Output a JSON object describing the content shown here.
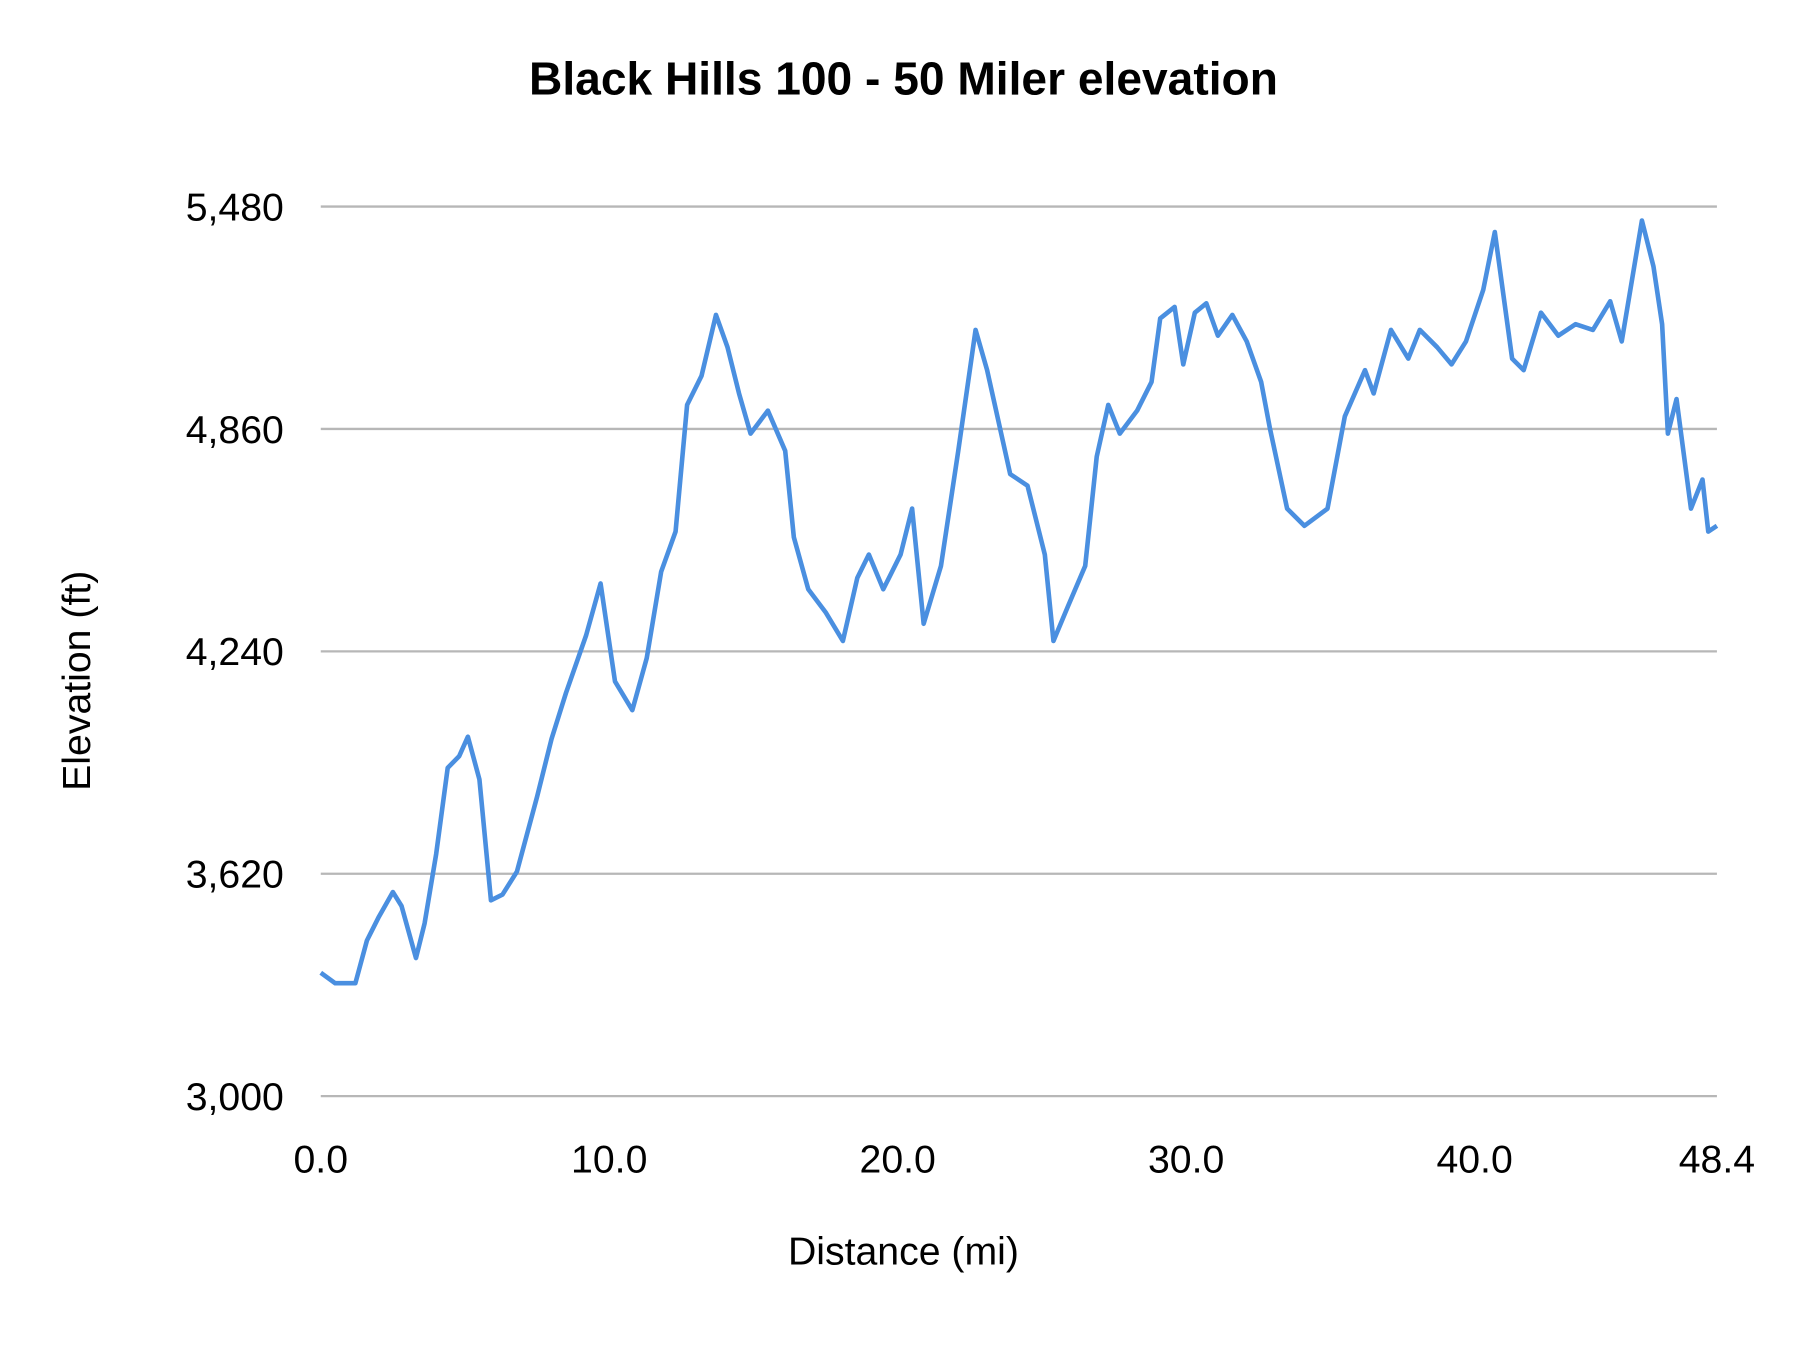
{
  "chart_data": {
    "type": "line",
    "title": "Black Hills 100 - 50 Miler elevation",
    "xlabel": "Distance (mi)",
    "ylabel": "Elevation (ft)",
    "xlim": [
      0,
      48.4
    ],
    "ylim": [
      3000,
      5480
    ],
    "x_ticks": [
      "0.0",
      "10.0",
      "20.0",
      "30.0",
      "40.0",
      "48.4"
    ],
    "x_tick_values": [
      0,
      10,
      20,
      30,
      40,
      48.4
    ],
    "y_ticks": [
      "3,000",
      "3,620",
      "4,240",
      "4,860",
      "5,480"
    ],
    "y_tick_values": [
      3000,
      3620,
      4240,
      4860,
      5480
    ],
    "grid": "horizontal",
    "legend": "none",
    "line_color": "#4a8fe0",
    "series": [
      {
        "x": [
          0,
          0.5,
          1.2,
          1.6,
          2.0,
          2.5,
          2.8,
          3.3,
          3.6,
          4.0,
          4.4,
          4.8,
          5.1,
          5.5,
          5.9,
          6.3,
          6.8,
          7.5,
          8.0,
          8.5,
          9.2,
          9.7,
          10.2,
          10.8,
          11.3,
          11.8,
          12.3,
          12.7,
          13.2,
          13.7,
          14.1,
          14.5,
          14.9,
          15.5,
          16.1,
          16.4,
          16.9,
          17.5,
          18.1,
          18.6,
          19.0,
          19.5,
          20.1,
          20.5,
          20.9,
          21.5,
          22.1,
          22.7,
          23.1,
          23.9,
          24.5,
          25.1,
          25.4,
          25.9,
          26.5,
          26.9,
          27.3,
          27.7,
          28.3,
          28.8,
          29.1,
          29.6,
          29.9,
          30.3,
          30.7,
          31.1,
          31.6,
          32.1,
          32.6,
          32.9,
          33.5,
          34.1,
          34.9,
          35.5,
          36.2,
          36.5,
          37.1,
          37.7,
          38.1,
          38.7,
          39.2,
          39.7,
          40.3,
          40.7,
          41.3,
          41.7,
          42.3,
          42.9,
          43.5,
          44.1,
          44.7,
          45.1,
          45.8,
          46.2,
          46.5,
          46.7,
          47.0,
          47.5,
          47.9,
          48.1,
          48.4
        ],
        "y": [
          3344,
          3315,
          3315,
          3434,
          3498,
          3569,
          3530,
          3385,
          3482,
          3675,
          3915,
          3948,
          4002,
          3883,
          3546,
          3562,
          3626,
          3835,
          3996,
          4124,
          4285,
          4429,
          4156,
          4076,
          4221,
          4462,
          4574,
          4927,
          5008,
          5178,
          5088,
          4959,
          4847,
          4911,
          4799,
          4558,
          4413,
          4349,
          4269,
          4445,
          4510,
          4413,
          4510,
          4638,
          4317,
          4478,
          4799,
          5136,
          5024,
          4734,
          4702,
          4510,
          4269,
          4365,
          4478,
          4783,
          4927,
          4847,
          4911,
          4991,
          5168,
          5200,
          5040,
          5184,
          5210,
          5120,
          5178,
          5104,
          4991,
          4863,
          4638,
          4590,
          4638,
          4895,
          5024,
          4959,
          5136,
          5056,
          5136,
          5088,
          5040,
          5104,
          5248,
          5409,
          5056,
          5024,
          5184,
          5120,
          5152,
          5136,
          5216,
          5104,
          5441,
          5313,
          5152,
          4847,
          4943,
          4638,
          4719,
          4574,
          4590
        ]
      }
    ]
  }
}
